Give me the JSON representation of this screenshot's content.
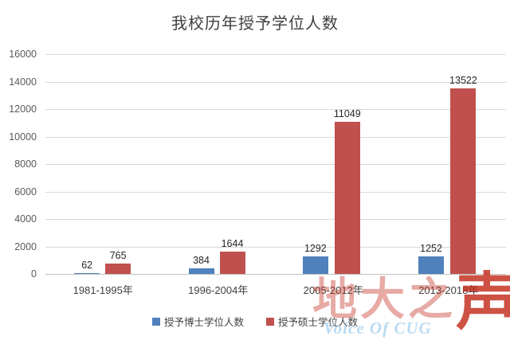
{
  "title": "我校历年授予学位人数",
  "chart_data": {
    "type": "bar",
    "title": "我校历年授予学位人数",
    "categories": [
      "1981-1995年",
      "1996-2004年",
      "2005-2012年",
      "2013-2018年"
    ],
    "series": [
      {
        "key": "doctoral",
        "name": "授予博士学位人数",
        "color": "#4F81BD",
        "values": [
          62,
          384,
          1292,
          1252
        ]
      },
      {
        "key": "masters",
        "name": "授予硕士学位人数",
        "color": "#C0504D",
        "values": [
          765,
          1644,
          11049,
          13522
        ]
      }
    ],
    "xlabel": "",
    "ylabel": "",
    "ylim": [
      0,
      16000
    ],
    "yticks": [
      0,
      2000,
      4000,
      6000,
      8000,
      10000,
      12000,
      14000,
      16000
    ],
    "grid": true,
    "legend_position": "bottom",
    "data_labels": true
  },
  "colors": {
    "bar_blue": "#4F81BD",
    "bar_red": "#C0504D",
    "gridline": "#D9D9D9",
    "axis_line": "#C0C0C0",
    "title_text": "#3F3F3F",
    "tick_text": "#595959",
    "label_text": "#404040",
    "watermark_red": "#C8372A",
    "watermark_blue": "#BADBF2"
  },
  "watermark": {
    "text_main": "地大之",
    "text_last": "声",
    "subtext": "Voice Of CUG"
  }
}
